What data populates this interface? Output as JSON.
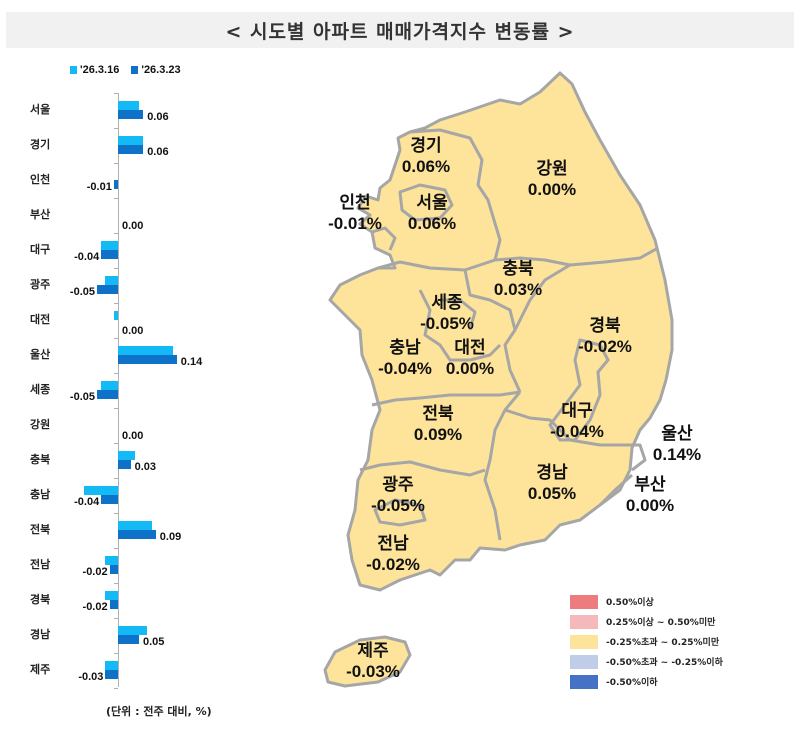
{
  "title": "< 시도별 아파트 매매가격지수 변동률 >",
  "legend": [
    {
      "label": "'26.3.16",
      "color": "#14baf5"
    },
    {
      "label": "'26.3.23",
      "color": "#0d72c8"
    }
  ],
  "unit_note": "(단위 : 전주 대비, %)",
  "chart_data": {
    "type": "bar",
    "orientation": "horizontal",
    "title": "시도별 아파트 매매가격지수 변동률",
    "categories": [
      "서울",
      "경기",
      "인천",
      "부산",
      "대구",
      "광주",
      "대전",
      "울산",
      "세종",
      "강원",
      "충북",
      "충남",
      "전북",
      "전남",
      "경북",
      "경남",
      "제주"
    ],
    "series": [
      {
        "name": "'26.3.16",
        "values": [
          0.05,
          0.06,
          0.0,
          0.0,
          -0.04,
          -0.03,
          -0.01,
          0.13,
          -0.04,
          0.0,
          0.04,
          -0.08,
          0.08,
          -0.03,
          -0.03,
          0.07,
          -0.03
        ]
      },
      {
        "name": "'26.3.23",
        "values": [
          0.06,
          0.06,
          -0.01,
          0.0,
          -0.04,
          -0.05,
          0.0,
          0.14,
          -0.05,
          0.0,
          0.03,
          -0.04,
          0.09,
          -0.02,
          -0.02,
          0.05,
          -0.03
        ]
      }
    ],
    "data_labels": [
      "0.06",
      "0.06",
      "-0.01",
      "0.00",
      "-0.04",
      "-0.05",
      "0.00",
      "0.14",
      "-0.05",
      "0.00",
      "0.03",
      "-0.04",
      "0.09",
      "-0.02",
      "-0.02",
      "0.05",
      "-0.03"
    ],
    "xlabel": "",
    "ylabel": "",
    "unit": "(단위 : 전주 대비, %)",
    "grid": false,
    "legend_position": "top"
  },
  "map": {
    "regions": [
      {
        "name": "경기",
        "value": "0.06%"
      },
      {
        "name": "강원",
        "value": "0.00%"
      },
      {
        "name": "인천",
        "value": "-0.01%"
      },
      {
        "name": "서울",
        "value": "0.06%"
      },
      {
        "name": "충북",
        "value": "0.03%"
      },
      {
        "name": "세종",
        "value": "-0.05%"
      },
      {
        "name": "경북",
        "value": "-0.02%"
      },
      {
        "name": "충남",
        "value": "-0.04%"
      },
      {
        "name": "대전",
        "value": "0.00%"
      },
      {
        "name": "전북",
        "value": "0.09%"
      },
      {
        "name": "대구",
        "value": "-0.04%"
      },
      {
        "name": "울산",
        "value": "0.14%"
      },
      {
        "name": "광주",
        "value": "-0.05%"
      },
      {
        "name": "경남",
        "value": "0.05%"
      },
      {
        "name": "부산",
        "value": "0.00%"
      },
      {
        "name": "전남",
        "value": "-0.02%"
      },
      {
        "name": "제주",
        "value": "-0.03%"
      }
    ],
    "fill_color": "#fde49a",
    "border_color": "#a6a6a6",
    "legend": [
      {
        "label": "0.50%이상",
        "color": "#ee7b7d"
      },
      {
        "label": "0.25%이상 ~ 0.50%미만",
        "color": "#f6b9bb"
      },
      {
        "label": "-0.25%초과 ~ 0.25%미만",
        "color": "#fde49a"
      },
      {
        "label": "-0.50%초과 ~ -0.25%이하",
        "color": "#bfcde9"
      },
      {
        "label": "-0.50%이하",
        "color": "#4472c4"
      }
    ]
  }
}
